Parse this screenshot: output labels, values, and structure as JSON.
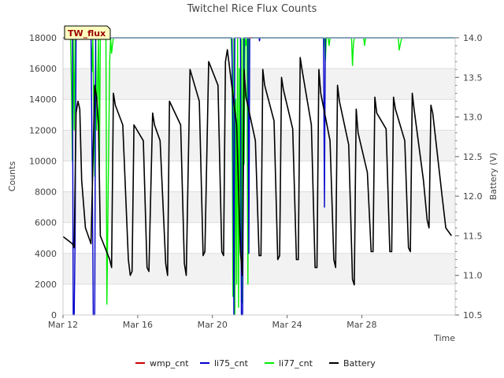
{
  "chart_data": {
    "type": "line",
    "title": "Twitchel Rice Flux Counts",
    "site_label": "TW_flux",
    "xlabel": "Time",
    "ylabel_left": "Counts",
    "ylabel_right": "Battery (V)",
    "x_unit": "days since Mar 12",
    "xlim": [
      0,
      21
    ],
    "ylim_left": [
      0,
      18000
    ],
    "ylim_right": [
      10.5,
      14.0
    ],
    "x_ticks": [
      {
        "value": 0,
        "label": "Mar 12"
      },
      {
        "value": 4,
        "label": "Mar 16"
      },
      {
        "value": 8,
        "label": "Mar 20"
      },
      {
        "value": 12,
        "label": "Mar 24"
      },
      {
        "value": 16,
        "label": "Mar 28"
      }
    ],
    "y_ticks_left": [
      {
        "value": 0,
        "label": "0"
      },
      {
        "value": 2000,
        "label": "2000"
      },
      {
        "value": 4000,
        "label": "4000"
      },
      {
        "value": 6000,
        "label": "6000"
      },
      {
        "value": 8000,
        "label": "8000"
      },
      {
        "value": 10000,
        "label": "10000"
      },
      {
        "value": 12000,
        "label": "12000"
      },
      {
        "value": 14000,
        "label": "14000"
      },
      {
        "value": 16000,
        "label": "16000"
      },
      {
        "value": 18000,
        "label": "18000"
      }
    ],
    "y_ticks_right": [
      {
        "value": 10.5,
        "label": "10.5"
      },
      {
        "value": 11.0,
        "label": "11.0"
      },
      {
        "value": 11.5,
        "label": "11.5"
      },
      {
        "value": 12.0,
        "label": "12.0"
      },
      {
        "value": 12.5,
        "label": "12.5"
      },
      {
        "value": 13.0,
        "label": "13.0"
      },
      {
        "value": 13.5,
        "label": "13.5"
      },
      {
        "value": 14.0,
        "label": "14.0"
      }
    ],
    "series": [
      {
        "name": "wmp_cnt",
        "color": "#cc0000",
        "axis": "left",
        "x": [
          9.9,
          10.15
        ],
        "y": [
          18000,
          18000
        ]
      },
      {
        "name": "li75_cnt",
        "color": "#0000cc",
        "axis": "left",
        "x": [
          0,
          0.5,
          0.55,
          0.6,
          0.65,
          0.7,
          0.72,
          0.8,
          1.5,
          1.6,
          1.62,
          1.7,
          1.75,
          1.8,
          1.85,
          1.9,
          1.95,
          2.0,
          2.05,
          2.1,
          9.0,
          9.05,
          9.1,
          9.15,
          9.2,
          9.3,
          9.5,
          9.55,
          9.6,
          9.62,
          9.7,
          9.8,
          9.82,
          9.9,
          9.95,
          10.0,
          10.5,
          10.52,
          10.55,
          10.6,
          13.95,
          14.0,
          14.02,
          14.05,
          14.1,
          14.15,
          14.2,
          21
        ],
        "y": [
          18000,
          18000,
          0,
          0,
          5000,
          18000,
          18000,
          18000,
          18000,
          4200,
          0,
          0,
          18000,
          18000,
          18000,
          18000,
          18000,
          18000,
          18000,
          18000,
          18000,
          18000,
          12000,
          0,
          18000,
          18000,
          18000,
          0,
          0,
          0,
          18000,
          18000,
          18000,
          18000,
          4000,
          18000,
          18000,
          17800,
          18000,
          18000,
          18000,
          7000,
          12000,
          18000,
          18000,
          18000,
          18000,
          18000
        ]
      },
      {
        "name": "li77_cnt",
        "color": "#00ee00",
        "axis": "left",
        "x": [
          0,
          0.4,
          0.45,
          0.5,
          0.55,
          0.6,
          0.65,
          0.7,
          0.8,
          1.5,
          1.55,
          1.6,
          1.7,
          1.75,
          1.8,
          1.9,
          1.95,
          2.0,
          2.05,
          2.3,
          2.35,
          2.5,
          2.55,
          2.6,
          2.65,
          2.7,
          2.75,
          2.8,
          2.85,
          2.9,
          9.0,
          9.05,
          9.1,
          9.15,
          9.2,
          9.25,
          9.3,
          9.35,
          9.4,
          9.45,
          9.5,
          9.55,
          9.6,
          9.65,
          9.7,
          9.75,
          9.8,
          9.85,
          9.9,
          9.95,
          10.0,
          10.05,
          10.1,
          10.15,
          10.2,
          14.0,
          14.05,
          14.1,
          14.15,
          14.2,
          14.25,
          14.3,
          15.45,
          15.5,
          15.55,
          15.6,
          16.0,
          16.1,
          16.15,
          16.2,
          17.95,
          18.0,
          18.1,
          18.15,
          18.2,
          18.3,
          21
        ],
        "y": [
          18000,
          18000,
          15000,
          10000,
          18000,
          12000,
          18000,
          18000,
          18000,
          18000,
          15800,
          18000,
          9000,
          18000,
          12000,
          18000,
          9500,
          18000,
          18000,
          18000,
          700,
          16500,
          18000,
          17000,
          17500,
          18000,
          18000,
          18000,
          18000,
          18000,
          18000,
          16500,
          1200,
          18000,
          0,
          14000,
          2000,
          18000,
          500,
          16000,
          5000,
          18000,
          800,
          18000,
          9800,
          18000,
          17500,
          18000,
          2000,
          18000,
          18000,
          18000,
          18000,
          18000,
          18000,
          18000,
          16500,
          18000,
          18000,
          18000,
          17500,
          18000,
          18000,
          16200,
          17600,
          18000,
          18000,
          18000,
          17500,
          18000,
          18000,
          17200,
          17800,
          18000,
          18000,
          18000,
          18000
        ]
      },
      {
        "name": "Battery",
        "color": "#000000",
        "axis": "right",
        "x": [
          0,
          0.5,
          0.6,
          0.7,
          0.8,
          0.9,
          1.0,
          1.2,
          1.5,
          1.7,
          1.8,
          1.9,
          2.0,
          2.2,
          2.5,
          2.6,
          2.7,
          2.8,
          3.2,
          3.5,
          3.6,
          3.7,
          3.8,
          4.3,
          4.5,
          4.6,
          4.8,
          4.9,
          5.2,
          5.5,
          5.6,
          5.7,
          6.3,
          6.5,
          6.6,
          6.8,
          7.3,
          7.5,
          7.6,
          7.8,
          8.3,
          8.5,
          8.6,
          8.7,
          8.8,
          9.3,
          9.5,
          9.6,
          9.7,
          9.8,
          10.3,
          10.5,
          10.6,
          10.7,
          10.8,
          11.3,
          11.5,
          11.6,
          11.7,
          11.8,
          12.3,
          12.5,
          12.6,
          12.7,
          12.8,
          13.3,
          13.5,
          13.6,
          13.7,
          13.8,
          14.3,
          14.5,
          14.6,
          14.7,
          14.8,
          15.3,
          15.5,
          15.6,
          15.7,
          15.8,
          16.3,
          16.5,
          16.6,
          16.7,
          16.8,
          17.3,
          17.5,
          17.6,
          17.7,
          17.8,
          18.3,
          18.5,
          18.6,
          18.7,
          18.8,
          19.3,
          19.5,
          19.6,
          19.7,
          19.8,
          20.3,
          20.5,
          20.8
        ],
        "y": [
          11.49,
          11.4,
          11.35,
          13.05,
          13.2,
          13.1,
          12.2,
          11.6,
          11.4,
          13.4,
          13.25,
          12.9,
          11.5,
          11.38,
          11.2,
          11.1,
          13.3,
          13.15,
          12.9,
          11.2,
          11.0,
          11.05,
          12.9,
          12.7,
          11.1,
          11.05,
          13.05,
          12.9,
          12.7,
          11.15,
          11.0,
          13.2,
          12.9,
          11.15,
          11.0,
          13.6,
          13.2,
          11.25,
          11.3,
          13.7,
          13.4,
          11.3,
          11.25,
          13.7,
          13.85,
          12.9,
          11.3,
          11.0,
          13.6,
          13.25,
          12.7,
          11.25,
          11.25,
          13.6,
          13.4,
          12.95,
          11.2,
          11.25,
          13.5,
          13.35,
          12.85,
          11.2,
          11.2,
          13.75,
          13.6,
          12.9,
          11.1,
          11.1,
          13.6,
          13.3,
          12.7,
          11.2,
          11.1,
          13.4,
          13.2,
          12.65,
          10.95,
          10.88,
          13.1,
          12.8,
          12.3,
          11.3,
          11.3,
          13.25,
          13.05,
          12.85,
          11.3,
          11.3,
          13.25,
          13.1,
          12.7,
          11.35,
          11.3,
          13.3,
          13.1,
          12.2,
          11.7,
          11.6,
          13.15,
          13.05,
          12.0,
          11.6,
          11.5
        ]
      }
    ],
    "legend": [
      "wmp_cnt",
      "li75_cnt",
      "li77_cnt",
      "Battery"
    ],
    "legend_position": "bottom-center",
    "background_bands": "alternating light gray every 2000 counts"
  }
}
